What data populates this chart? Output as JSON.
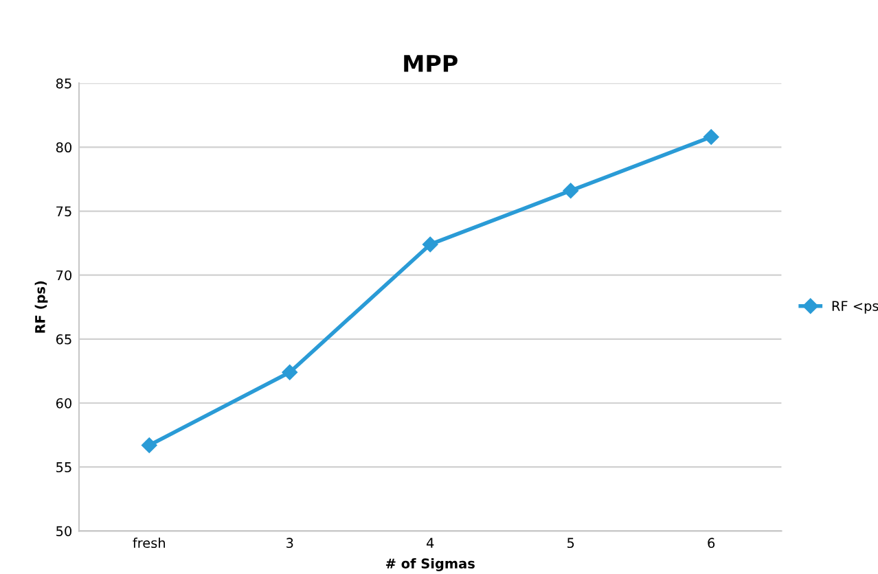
{
  "chart_data": {
    "type": "line",
    "title": "MPP",
    "xlabel": "# of Sigmas",
    "ylabel": "RF (ps)",
    "categories": [
      "fresh",
      "3",
      "4",
      "5",
      "6"
    ],
    "series": [
      {
        "name": "RF <ps",
        "color": "#2a9bd6",
        "values": [
          56.7,
          62.4,
          72.4,
          76.6,
          80.8
        ]
      }
    ],
    "ylim": [
      50,
      85
    ],
    "yticks": [
      50,
      55,
      60,
      65,
      70,
      75,
      80,
      85
    ],
    "grid": "y",
    "legend": "right",
    "marker": "diamond",
    "line_style": "solid"
  }
}
